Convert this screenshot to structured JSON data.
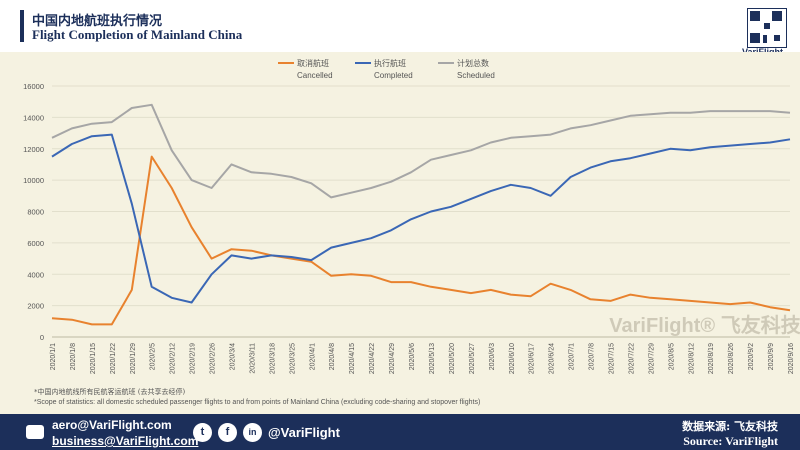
{
  "header": {
    "title_cn": "中国内地航班执行情况",
    "title_en": "Flight Completion of Mainland China",
    "brand": "VariFlight"
  },
  "chart_data": {
    "type": "line",
    "title": "Flight Completion of Mainland China",
    "xlabel": "",
    "ylabel": "",
    "ylim": [
      0,
      16000
    ],
    "yticks": [
      "0",
      "2000",
      "4000",
      "6000",
      "8000",
      "10000",
      "12000",
      "14000",
      "16000"
    ],
    "categories": [
      "2020/1/1",
      "2020/1/8",
      "2020/1/15",
      "2020/1/22",
      "2020/1/29",
      "2020/2/5",
      "2020/2/12",
      "2020/2/19",
      "2020/2/26",
      "2020/3/4",
      "2020/3/11",
      "2020/3/18",
      "2020/3/25",
      "2020/4/1",
      "2020/4/8",
      "2020/4/15",
      "2020/4/22",
      "2020/4/29",
      "2020/5/6",
      "2020/5/13",
      "2020/5/20",
      "2020/5/27",
      "2020/6/3",
      "2020/6/10",
      "2020/6/17",
      "2020/6/24",
      "2020/7/1",
      "2020/7/8",
      "2020/7/15",
      "2020/7/22",
      "2020/7/29",
      "2020/8/5",
      "2020/8/12",
      "2020/8/19",
      "2020/8/26",
      "2020/9/2",
      "2020/9/9",
      "2020/9/16"
    ],
    "series": [
      {
        "name": "取消航班",
        "name_en": "Cancelled",
        "color": "#e8822e",
        "values": [
          1200,
          1100,
          800,
          800,
          3000,
          11500,
          9500,
          7000,
          5000,
          5600,
          5500,
          5200,
          5000,
          4800,
          3900,
          4000,
          3900,
          3500,
          3500,
          3200,
          3000,
          2800,
          3000,
          2700,
          2600,
          3400,
          3000,
          2400,
          2300,
          2700,
          2500,
          2400,
          2300,
          2200,
          2100,
          2200,
          1900,
          1700
        ]
      },
      {
        "name": "执行航班",
        "name_en": "Completed",
        "color": "#3a67b5",
        "values": [
          11500,
          12300,
          12800,
          12900,
          8500,
          3200,
          2500,
          2200,
          4000,
          5200,
          5000,
          5200,
          5100,
          4900,
          5700,
          6000,
          6300,
          6800,
          7500,
          8000,
          8300,
          8800,
          9300,
          9700,
          9500,
          9000,
          10200,
          10800,
          11200,
          11400,
          11700,
          12000,
          11900,
          12100,
          12200,
          12300,
          12400,
          12600
        ]
      },
      {
        "name": "计划总数",
        "name_en": "Scheduled",
        "color": "#a6a6a6",
        "values": [
          12700,
          13300,
          13600,
          13700,
          14600,
          14800,
          11900,
          10000,
          9500,
          11000,
          10500,
          10400,
          10200,
          9800,
          8900,
          9200,
          9500,
          9900,
          10500,
          11300,
          11600,
          11900,
          12400,
          12700,
          12800,
          12900,
          13300,
          13500,
          13800,
          14100,
          14200,
          14300,
          14300,
          14400,
          14400,
          14400,
          14400,
          14300
        ]
      }
    ],
    "legend_position": "top-center",
    "watermark": "VariFlight® 飞友科技"
  },
  "notes": {
    "cn": "*中国内地航线所有民航客运航班 (去共享去经停)",
    "en": "*Scope of statistics: all domestic scheduled passenger flights to and from points of Mainland China (excluding code-sharing and stopover flights)"
  },
  "footer": {
    "email1": "aero@VariFlight.com",
    "email2": "business@VariFlight.com",
    "handle": "@VariFlight",
    "twitter_glyph": "t",
    "facebook_glyph": "f",
    "linkedin_glyph": "in",
    "source_cn": "数据来源: 飞友科技",
    "source_en": "Source: VariFlight"
  }
}
